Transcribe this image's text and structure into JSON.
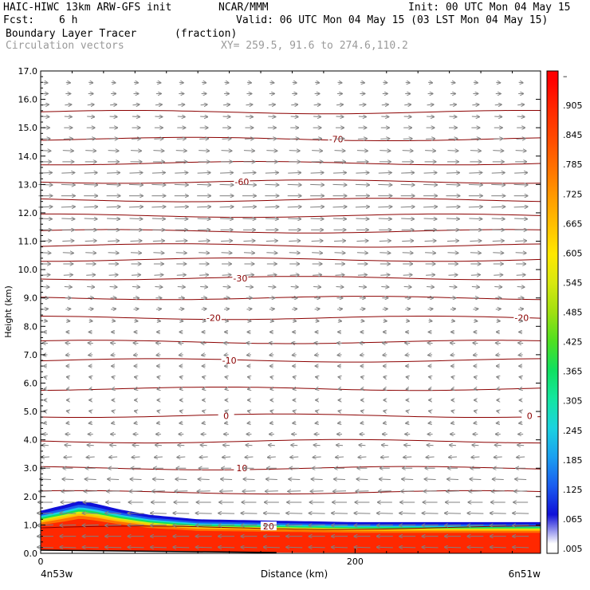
{
  "header": {
    "model": "HAIC-HIWC 13km ARW-GFS init",
    "org": "NCAR/MMM",
    "init": "Init: 00 UTC Mon 04 May 15",
    "fcst_label": "Fcst:",
    "fcst_value": "6 h",
    "valid": "Valid: 06 UTC Mon 04 May 15 (03 LST Mon 04 May 15)",
    "field_name": "Boundary Layer Tracer",
    "field_units": "(fraction)",
    "overlay_name": "Circulation vectors",
    "xy_text": "XY= 259.5, 91.6 to 274.6,110.2"
  },
  "chart_data": {
    "type": "heatmap",
    "ylabel": "Height (km)",
    "xlabel": "Distance (km)",
    "x_left_label": "4n53w",
    "x_right_label": "6n51w",
    "x_ticks": [
      "0",
      "200"
    ],
    "y_ticks": [
      "0.0",
      "1.0",
      "2.0",
      "3.0",
      "4.0",
      "5.0",
      "6.0",
      "7.0",
      "8.0",
      "9.0",
      "10.0",
      "11.0",
      "12.0",
      "13.0",
      "14.0",
      "15.0",
      "16.0",
      "17.0"
    ],
    "xlim": [
      0,
      318
    ],
    "ylim": [
      0,
      17
    ],
    "colorbar": {
      "labels": [
        ".005",
        ".065",
        ".125",
        ".185",
        ".245",
        ".305",
        ".365",
        ".425",
        ".485",
        ".545",
        ".605",
        ".665",
        ".725",
        ".785",
        ".845",
        ".905",
        "–"
      ],
      "colors": [
        "#ffffff",
        "#1010d8",
        "#1a5cf0",
        "#1aa0f0",
        "#1ad2e0",
        "#14e6a0",
        "#10e060",
        "#50e020",
        "#a0e010",
        "#d8e810",
        "#ffe800",
        "#ffc000",
        "#ff9a00",
        "#ff7000",
        "#ff4a00",
        "#ff2800",
        "#ff0000"
      ]
    },
    "tracer_profile": {
      "x": [
        0,
        15,
        25,
        35,
        50,
        70,
        100,
        150,
        200,
        250,
        300,
        318
      ],
      "top": [
        1.5,
        1.7,
        1.85,
        1.75,
        1.55,
        1.35,
        1.2,
        1.15,
        1.1,
        1.1,
        1.1,
        1.1
      ]
    },
    "temperature_contours": [
      {
        "label": "20",
        "level_km": 0.95,
        "label_x": 145
      },
      {
        "label": "10",
        "level_km": 3.0,
        "label_x": 128
      },
      {
        "label": "0",
        "level_km": 4.85,
        "label_x": 118
      },
      {
        "label": "0",
        "level_km": 4.85,
        "label_x": 311
      },
      {
        "label": "-10",
        "level_km": 6.8,
        "label_x": 120
      },
      {
        "label": "-20",
        "level_km": 8.3,
        "label_x": 110
      },
      {
        "label": "-20",
        "level_km": 8.3,
        "label_x": 306
      },
      {
        "label": "-30",
        "level_km": 9.7,
        "label_x": 127
      },
      {
        "label": "-60",
        "level_km": 13.1,
        "label_x": 128
      },
      {
        "label": "-70",
        "level_km": 14.6,
        "label_x": 188
      }
    ],
    "contour_levels_km": [
      0.9,
      2.15,
      3.0,
      3.95,
      4.85,
      5.8,
      6.8,
      7.45,
      8.3,
      9.0,
      9.7,
      10.35,
      10.85,
      11.35,
      11.9,
      12.45,
      13.1,
      13.75,
      14.6,
      15.55
    ],
    "wind_vectors": {
      "description_levels_km": [
        0.2,
        0.6,
        1.0,
        1.4,
        1.8,
        2.2,
        2.6,
        3.0,
        3.4,
        3.8,
        4.2,
        4.6,
        5.0,
        5.4,
        5.8,
        6.2,
        6.6,
        7.0,
        7.4,
        7.8,
        8.2,
        8.6,
        9.0,
        9.4,
        9.8,
        10.2,
        10.6,
        11.0,
        11.4,
        11.8,
        12.2,
        12.6,
        13.0,
        13.4,
        13.8,
        14.2,
        14.6,
        15.0,
        15.4,
        15.8,
        16.2,
        16.6
      ],
      "u_by_level": [
        -1.0,
        -1.0,
        -1.0,
        -1.0,
        -0.9,
        -0.8,
        -0.7,
        -0.6,
        -0.5,
        -0.4,
        -0.3,
        -0.2,
        -0.1,
        -0.1,
        -0.1,
        -0.15,
        -0.2,
        -0.25,
        -0.3,
        -0.2,
        0.2,
        0.3,
        0.35,
        0.45,
        0.55,
        0.6,
        0.65,
        0.7,
        0.75,
        0.8,
        0.85,
        0.85,
        0.85,
        0.8,
        0.7,
        0.65,
        0.55,
        0.5,
        0.45,
        0.4,
        0.3,
        0.25
      ],
      "colour": "#808080"
    },
    "contour_colour": "#8b0000"
  }
}
